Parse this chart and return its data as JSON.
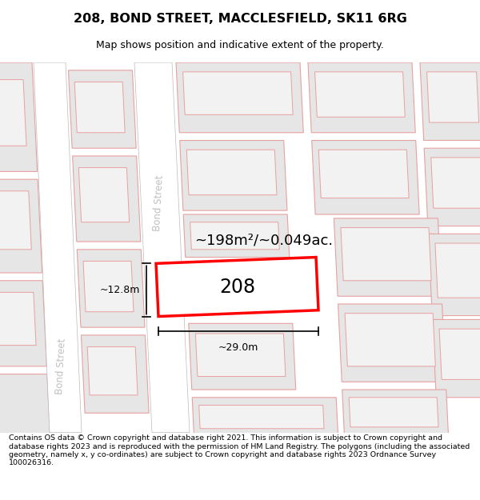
{
  "title": "208, BOND STREET, MACCLESFIELD, SK11 6RG",
  "subtitle": "Map shows position and indicative extent of the property.",
  "footnote": "Contains OS data © Crown copyright and database right 2021. This information is subject to Crown copyright and database rights 2023 and is reproduced with the permission of HM Land Registry. The polygons (including the associated geometry, namely x, y co-ordinates) are subject to Crown copyright and database rights 2023 Ordnance Survey 100026316.",
  "area_text": "~198m²/~0.049ac.",
  "label_208": "208",
  "dim_width": "~29.0m",
  "dim_height": "~12.8m",
  "street_label_upper": "Bond Street",
  "street_label_lower": "Bond Street",
  "bg_color": "#efefef",
  "road_fill": "#ffffff",
  "road_edge": "#bbbbbb",
  "block_fill": "#e6e6e6",
  "block_edge": "#e8a0a0",
  "inner_fill": "#f2f2f2",
  "inner_edge": "#e8a0a0",
  "plot_fill": "#ffffff",
  "plot_edge": "#ff0000",
  "text_color": "#000000",
  "street_text_color": "#c0c0c0"
}
